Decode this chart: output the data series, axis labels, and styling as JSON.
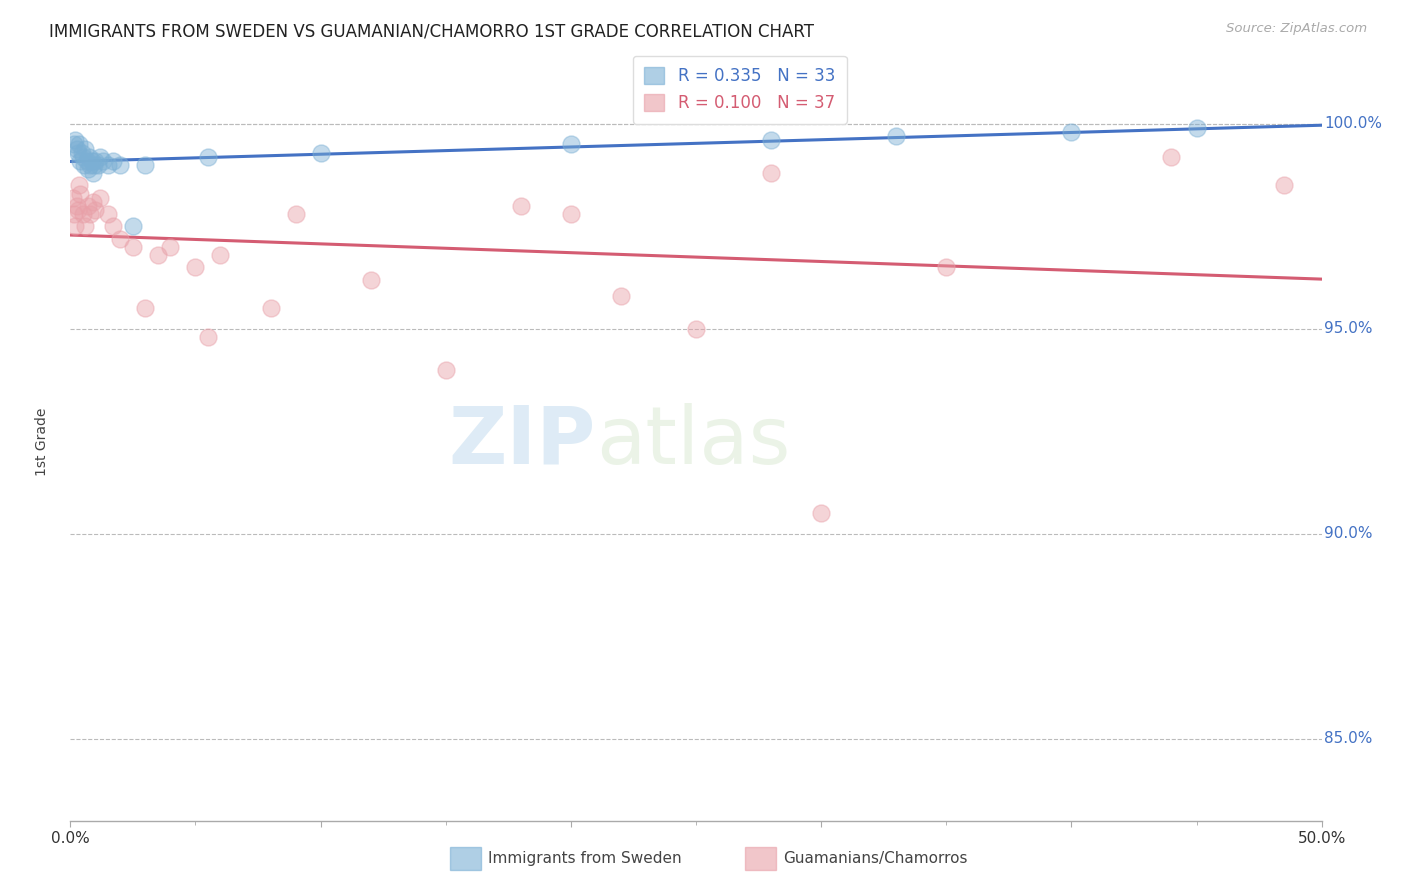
{
  "title": "IMMIGRANTS FROM SWEDEN VS GUAMANIAN/CHAMORRO 1ST GRADE CORRELATION CHART",
  "source": "Source: ZipAtlas.com",
  "ylabel": "1st Grade",
  "xlim": [
    0.0,
    50.0
  ],
  "ylim": [
    83.0,
    101.5
  ],
  "yticks": [
    85.0,
    90.0,
    95.0,
    100.0
  ],
  "xticks": [
    0.0,
    10.0,
    20.0,
    30.0,
    40.0,
    50.0
  ],
  "xtick_labels": [
    "0.0%",
    "",
    "",
    "",
    "",
    "50.0%"
  ],
  "background_color": "#ffffff",
  "blue_color": "#7bafd4",
  "pink_color": "#e8a0a8",
  "blue_line_color": "#4472c4",
  "pink_line_color": "#d45c72",
  "blue_r": "0.335",
  "blue_n": "33",
  "pink_r": "0.100",
  "pink_n": "37",
  "legend1_label": "R = 0.335   N = 33",
  "legend2_label": "R = 0.100   N = 37",
  "bottom_label1": "Immigrants from Sweden",
  "bottom_label2": "Guamanians/Chamorros",
  "watermark_zip": "ZIP",
  "watermark_atlas": "atlas",
  "blue_scatter_x": [
    0.15,
    0.2,
    0.25,
    0.3,
    0.35,
    0.4,
    0.45,
    0.5,
    0.55,
    0.6,
    0.65,
    0.7,
    0.75,
    0.8,
    0.85,
    0.9,
    0.95,
    1.0,
    1.1,
    1.2,
    1.3,
    1.5,
    1.7,
    2.0,
    2.5,
    3.0,
    5.5,
    10.0,
    20.0,
    28.0,
    33.0,
    40.0,
    45.0
  ],
  "blue_scatter_y": [
    99.5,
    99.6,
    99.4,
    99.3,
    99.5,
    99.1,
    99.3,
    99.2,
    99.0,
    99.4,
    99.1,
    98.9,
    99.2,
    99.0,
    99.1,
    98.8,
    99.0,
    99.1,
    99.0,
    99.2,
    99.1,
    99.0,
    99.1,
    99.0,
    97.5,
    99.0,
    99.2,
    99.3,
    99.5,
    99.6,
    99.7,
    99.8,
    99.9
  ],
  "pink_scatter_x": [
    0.1,
    0.15,
    0.2,
    0.25,
    0.3,
    0.35,
    0.4,
    0.5,
    0.6,
    0.7,
    0.8,
    0.9,
    1.0,
    1.2,
    1.5,
    1.7,
    2.0,
    2.5,
    3.0,
    3.5,
    4.0,
    5.0,
    5.5,
    6.0,
    8.0,
    9.0,
    12.0,
    15.0,
    18.0,
    20.0,
    22.0,
    25.0,
    28.0,
    30.0,
    35.0,
    44.0,
    48.5
  ],
  "pink_scatter_y": [
    98.2,
    97.8,
    97.5,
    98.0,
    97.9,
    98.5,
    98.3,
    97.8,
    97.5,
    98.0,
    97.8,
    98.1,
    97.9,
    98.2,
    97.8,
    97.5,
    97.2,
    97.0,
    95.5,
    96.8,
    97.0,
    96.5,
    94.8,
    96.8,
    95.5,
    97.8,
    96.2,
    94.0,
    98.0,
    97.8,
    95.8,
    95.0,
    98.8,
    90.5,
    96.5,
    99.2,
    98.5
  ]
}
